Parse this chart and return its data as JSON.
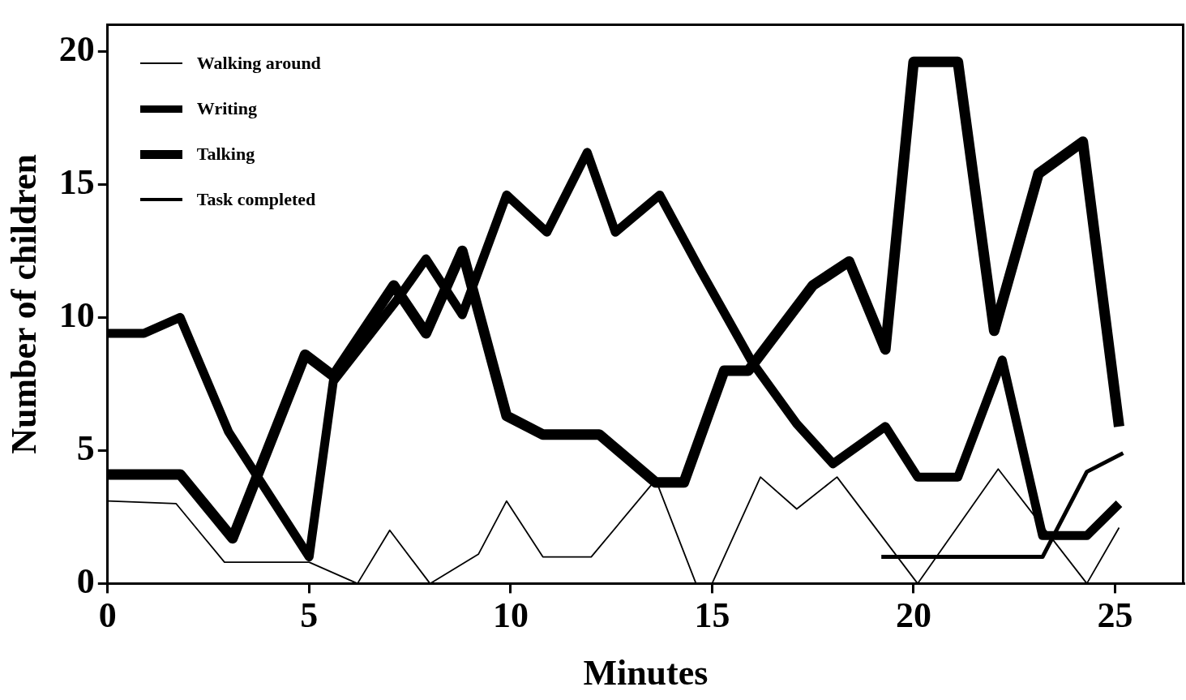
{
  "chart_data": {
    "type": "line",
    "xlabel": "Minutes",
    "ylabel": "Number of children",
    "xlim": [
      0,
      26.7
    ],
    "ylim": [
      0,
      21
    ],
    "xticks": [
      0,
      5,
      10,
      15,
      20,
      25
    ],
    "yticks": [
      0,
      5,
      10,
      15,
      20
    ],
    "legend": "top left",
    "grid": false,
    "marker": "none",
    "line_style": "solid",
    "series": [
      {
        "name": "Walking around",
        "color": "#000000",
        "x": [
          0,
          1.7,
          2.9,
          5.0,
          6.2,
          7.0,
          8.0,
          9.2,
          9.9,
          10.8,
          12.0,
          13.6,
          14.6,
          15.0,
          16.2,
          17.1,
          18.1,
          20.1,
          22.1,
          24.3,
          25.1
        ],
        "values": [
          3.1,
          3.0,
          0.8,
          0.8,
          0,
          2.0,
          0,
          1.1,
          3.1,
          1.0,
          1.0,
          3.9,
          0,
          0,
          4.0,
          2.8,
          4.0,
          0,
          4.3,
          0,
          2.1
        ]
      },
      {
        "name": "Writing",
        "color": "#000000",
        "x": [
          0,
          0.9,
          1.8,
          3.0,
          5.0,
          5.6,
          7.2,
          7.9,
          8.8,
          9.9,
          10.9,
          11.9,
          12.6,
          13.7,
          14.7,
          16.0,
          17.1,
          18.0,
          19.3,
          20.1,
          21.1,
          22.2,
          23.2,
          24.3,
          25.1
        ],
        "values": [
          9.4,
          9.4,
          10.0,
          5.7,
          1.0,
          7.6,
          10.7,
          12.2,
          10.1,
          14.6,
          13.2,
          16.2,
          13.2,
          14.6,
          11.8,
          8.3,
          6.0,
          4.5,
          5.9,
          4.0,
          4.0,
          8.4,
          1.8,
          1.8,
          3.0
        ]
      },
      {
        "name": "Talking",
        "color": "#000000",
        "x": [
          0,
          1.8,
          3.1,
          4.9,
          5.6,
          7.1,
          7.9,
          8.8,
          9.9,
          10.8,
          12.2,
          13.6,
          14.3,
          15.3,
          15.9,
          17.5,
          18.4,
          19.3,
          20.0,
          21.1,
          22.0,
          23.1,
          24.2,
          25.1
        ],
        "values": [
          4.1,
          4.1,
          1.7,
          8.6,
          7.8,
          11.2,
          9.4,
          12.5,
          6.3,
          5.6,
          5.6,
          3.8,
          3.8,
          8.0,
          8.0,
          11.2,
          12.1,
          8.8,
          19.6,
          19.6,
          9.5,
          15.4,
          16.6,
          5.9
        ]
      },
      {
        "name": "Task completed",
        "color": "#000000",
        "x": [
          19.2,
          23.2,
          24.3,
          25.2
        ],
        "values": [
          1.0,
          1.0,
          4.2,
          4.9
        ]
      }
    ]
  }
}
